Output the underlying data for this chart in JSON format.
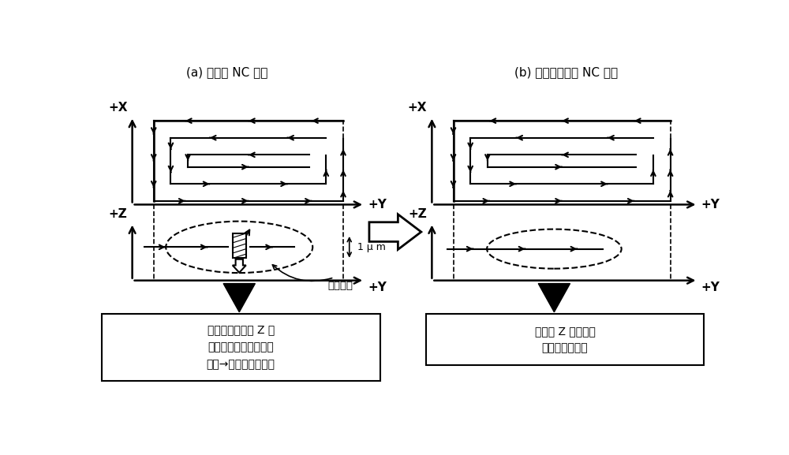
{
  "title_a": "(a) 现有的 NC 装置",
  "title_b": "(b) 本实施方式的 NC 装置",
  "label_plus_x": "+X",
  "label_plus_y": "+Y",
  "label_plus_z": "+Z",
  "label_1um": "1 μ m",
  "label_idling": "空转校正",
  "label_box_a": "被视为反转而向 Z 轴\n负方向施加过剥的空转\n校正→对工件造成损伤",
  "label_box_b": "不输出 Z 轴方向的\n错误的移动指令",
  "arrow_color": "#000000",
  "bg_color": "#ffffff"
}
